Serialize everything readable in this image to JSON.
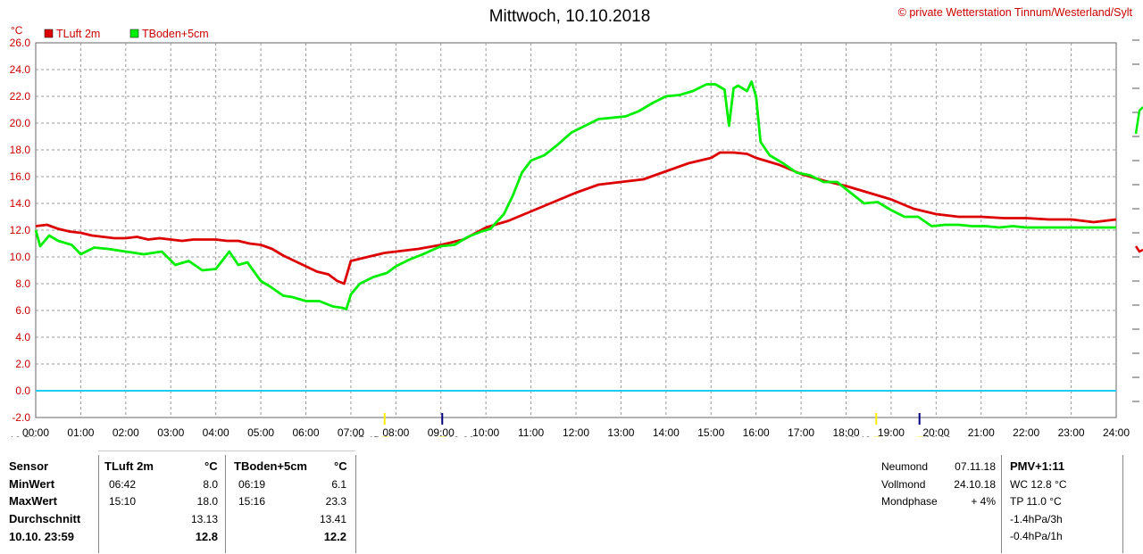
{
  "chart_data": {
    "type": "line",
    "title": "Mittwoch, 10.10.2018",
    "copyright": "© private Wetterstation Tinnum/Westerland/Sylt",
    "ylabel": "°C",
    "ylim": [
      -2,
      26
    ],
    "yticks": [
      "26.0",
      "24.0",
      "22.0",
      "20.0",
      "18.0",
      "16.0",
      "14.0",
      "12.0",
      "10.0",
      "8.0",
      "6.0",
      "4.0",
      "2.0",
      "0.0",
      "-2.0"
    ],
    "xlim": [
      0,
      24
    ],
    "xticks": [
      "00:00",
      "01:00",
      "02:00",
      "03:00",
      "04:00",
      "05:00",
      "06:00",
      "07:00",
      "08:00",
      "09:00",
      "10:00",
      "11:00",
      "12:00",
      "13:00",
      "14:00",
      "15:00",
      "16:00",
      "17:00",
      "18:00",
      "19:00",
      "20:00",
      "21:00",
      "22:00",
      "23:00",
      "24:00"
    ],
    "zero_line": 0,
    "grid": true,
    "legend_position": "top-left",
    "series": [
      {
        "name": "TLuft 2m",
        "color": "#dd0000",
        "x": [
          0,
          0.25,
          0.5,
          0.75,
          1,
          1.25,
          1.5,
          1.75,
          2,
          2.25,
          2.5,
          2.75,
          3,
          3.25,
          3.5,
          3.75,
          4,
          4.25,
          4.5,
          4.75,
          5,
          5.25,
          5.5,
          5.75,
          6,
          6.25,
          6.5,
          6.7,
          6.85,
          7,
          7.25,
          7.5,
          7.75,
          8,
          8.5,
          9,
          9.5,
          10,
          10.5,
          11,
          11.5,
          12,
          12.5,
          13,
          13.5,
          14,
          14.5,
          15,
          15.2,
          15.5,
          15.8,
          16,
          16.5,
          17,
          17.5,
          18,
          18.5,
          19,
          19.5,
          20,
          20.5,
          21,
          21.5,
          22,
          22.5,
          23,
          23.5,
          24
        ],
        "y": [
          12.3,
          12.4,
          12.1,
          11.9,
          11.8,
          11.6,
          11.5,
          11.4,
          11.4,
          11.5,
          11.3,
          11.4,
          11.3,
          11.2,
          11.3,
          11.3,
          11.3,
          11.2,
          11.2,
          11.0,
          10.9,
          10.6,
          10.1,
          9.7,
          9.3,
          8.9,
          8.7,
          8.2,
          8.0,
          9.7,
          9.9,
          10.1,
          10.3,
          10.4,
          10.6,
          10.9,
          11.3,
          12.2,
          12.7,
          13.4,
          14.1,
          14.8,
          15.4,
          15.6,
          15.8,
          16.4,
          17.0,
          17.4,
          17.8,
          17.8,
          17.7,
          17.4,
          16.9,
          16.2,
          15.7,
          15.3,
          14.8,
          14.3,
          13.6,
          13.2,
          13.0,
          13.0,
          12.9,
          12.9,
          12.8,
          12.8,
          12.6,
          12.8
        ]
      },
      {
        "name": "TBoden+5cm",
        "color": "#00ee00",
        "x": [
          0,
          0.1,
          0.3,
          0.5,
          0.8,
          1,
          1.3,
          1.6,
          2,
          2.4,
          2.8,
          3.1,
          3.4,
          3.7,
          4,
          4.3,
          4.5,
          4.7,
          5,
          5.2,
          5.5,
          5.7,
          6,
          6.3,
          6.6,
          6.8,
          6.9,
          7,
          7.2,
          7.5,
          7.8,
          8,
          8.3,
          8.6,
          9,
          9.3,
          9.6,
          9.9,
          10.1,
          10.4,
          10.6,
          10.8,
          11,
          11.3,
          11.6,
          11.9,
          12.2,
          12.5,
          12.8,
          13.1,
          13.4,
          13.7,
          14,
          14.3,
          14.6,
          14.9,
          15.1,
          15.3,
          15.4,
          15.5,
          15.6,
          15.8,
          15.9,
          16,
          16.1,
          16.3,
          16.6,
          16.9,
          17.2,
          17.5,
          17.8,
          18.1,
          18.4,
          18.7,
          19,
          19.3,
          19.6,
          19.9,
          20.2,
          20.5,
          20.8,
          21.1,
          21.4,
          21.7,
          22,
          22.3,
          22.6,
          23,
          23.4,
          24
        ],
        "y": [
          12.0,
          10.8,
          11.6,
          11.2,
          10.9,
          10.2,
          10.7,
          10.6,
          10.4,
          10.2,
          10.4,
          9.4,
          9.7,
          9.0,
          9.1,
          10.4,
          9.4,
          9.6,
          8.2,
          7.8,
          7.1,
          7.0,
          6.7,
          6.7,
          6.3,
          6.2,
          6.1,
          7.2,
          8.0,
          8.5,
          8.8,
          9.3,
          9.8,
          10.2,
          10.8,
          10.9,
          11.5,
          11.9,
          12.1,
          13.2,
          14.6,
          16.3,
          17.2,
          17.6,
          18.4,
          19.3,
          19.8,
          20.3,
          20.4,
          20.5,
          20.9,
          21.5,
          22.0,
          22.1,
          22.4,
          22.9,
          22.9,
          22.5,
          19.8,
          22.6,
          22.8,
          22.4,
          23.1,
          22.0,
          18.6,
          17.6,
          17.0,
          16.3,
          16.1,
          15.6,
          15.6,
          14.8,
          14.0,
          14.1,
          13.5,
          13.0,
          13.0,
          12.3,
          12.4,
          12.4,
          12.3,
          12.3,
          12.2,
          12.3,
          12.2,
          12.2,
          12.2,
          12.2,
          12.2,
          12.2
        ]
      }
    ],
    "time_markers": [
      {
        "label": "10:54",
        "position": "left"
      },
      {
        "label": "07:45",
        "t": 7.75,
        "color": "#ffee00"
      },
      {
        "label": "09:02",
        "t": 9.03,
        "color": "#000080"
      },
      {
        "label": "18:40",
        "t": 18.67,
        "color": "#ffee00"
      },
      {
        "label": "19:38",
        "t": 19.63,
        "color": "#000080"
      }
    ]
  },
  "stats": {
    "col_sensor": {
      "header": "Sensor",
      "rows": [
        "MinWert",
        "MaxWert",
        "Durchschnitt",
        "10.10. 23:59"
      ]
    },
    "tluft": {
      "header": "TLuft 2m",
      "unit": "°C",
      "min_time": "06:42",
      "min_val": "8.0",
      "max_time": "15:10",
      "max_val": "18.0",
      "avg": "13.13",
      "last": "12.8"
    },
    "tboden": {
      "header": "TBoden+5cm",
      "unit": "°C",
      "min_time": "06:19",
      "min_val": "6.1",
      "max_time": "15:16",
      "max_val": "23.3",
      "avg": "13.41",
      "last": "12.2"
    },
    "moon": [
      {
        "label": "Neumond",
        "value": "07.11.18"
      },
      {
        "label": "Vollmond",
        "value": "24.10.18"
      },
      {
        "label": "Mondphase",
        "value": "+ 4%"
      }
    ],
    "pmv": {
      "header": "PMV+1:11",
      "lines": [
        "WC 12.8 °C",
        "TP 11.0 °C",
        "-1.4hPa/3h",
        "-0.4hPa/1h"
      ]
    }
  }
}
